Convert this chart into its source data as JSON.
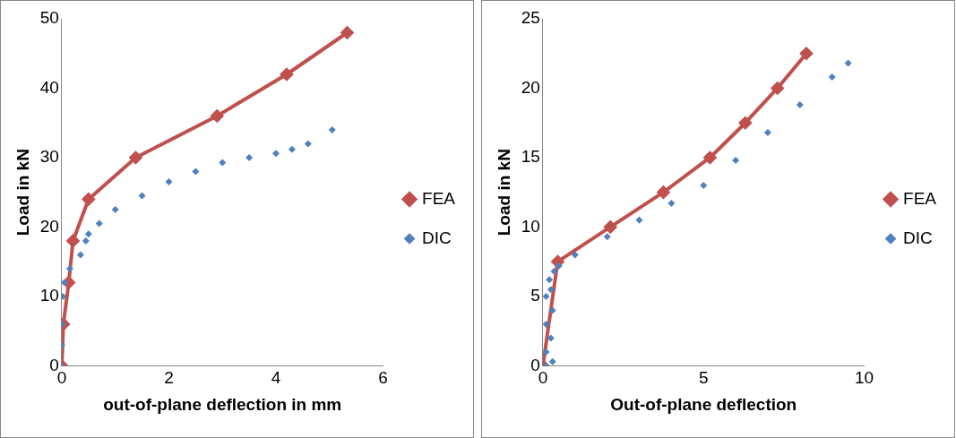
{
  "chart_data": [
    {
      "type": "line",
      "xlabel": "out-of-plane deflection in mm",
      "ylabel": "Load in kN",
      "xlim": [
        0,
        6
      ],
      "xticks": [
        0,
        2,
        4,
        6
      ],
      "ylim": [
        0,
        50
      ],
      "yticks": [
        0,
        10,
        20,
        30,
        40,
        50
      ],
      "grid": false,
      "legend": "right",
      "marker": "diamond",
      "series": [
        {
          "name": "FEA",
          "color": "#c0504d",
          "x": [
            0,
            0.03,
            0.13,
            0.21,
            0.5,
            1.38,
            2.9,
            4.2,
            5.33
          ],
          "values": [
            0,
            6,
            12,
            18,
            24,
            30,
            36,
            42,
            48
          ]
        },
        {
          "name": "DIC",
          "type": "scatter",
          "color": "#4f81bd",
          "x": [
            0,
            0,
            0.01,
            0.02,
            0.05,
            0.15,
            0.35,
            0.45,
            0.5,
            0.7,
            1,
            1.5,
            2,
            2.5,
            3,
            3.5,
            4,
            4.3,
            4.6,
            5.05
          ],
          "values": [
            0,
            3,
            6,
            10,
            12,
            14,
            16,
            18,
            19,
            20.5,
            22.5,
            24.5,
            26.5,
            28,
            29.3,
            30,
            30.6,
            31.2,
            32,
            34
          ]
        }
      ]
    },
    {
      "type": "line",
      "xlabel": "Out-of-plane deflection",
      "ylabel": "Load in kN",
      "xlim": [
        0,
        10
      ],
      "xticks": [
        0,
        5,
        10
      ],
      "ylim": [
        0,
        25
      ],
      "yticks": [
        0,
        5,
        10,
        15,
        20,
        25
      ],
      "grid": false,
      "legend": "right",
      "marker": "diamond",
      "series": [
        {
          "name": "FEA",
          "color": "#c0504d",
          "x": [
            0,
            0.46,
            2.1,
            3.75,
            5.2,
            6.3,
            7.3,
            8.2
          ],
          "values": [
            0,
            7.5,
            10,
            12.5,
            15,
            17.5,
            20,
            22.5
          ]
        },
        {
          "name": "DIC",
          "type": "scatter",
          "color": "#4f81bd",
          "x": [
            0.1,
            0.3,
            0.1,
            0.25,
            0.1,
            0.3,
            0.1,
            0.25,
            0.2,
            0.35,
            0.5,
            1,
            2,
            3,
            4,
            5,
            6,
            7,
            8,
            9,
            9.5
          ],
          "values": [
            0,
            0.3,
            1,
            2,
            3,
            4,
            5,
            5.5,
            6.2,
            6.8,
            7.2,
            8,
            9.3,
            10.5,
            11.7,
            13,
            14.8,
            16.8,
            18.8,
            20.8,
            21.8
          ]
        }
      ]
    }
  ]
}
